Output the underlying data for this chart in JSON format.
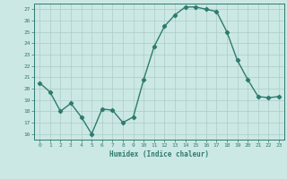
{
  "x": [
    0,
    1,
    2,
    3,
    4,
    5,
    6,
    7,
    8,
    9,
    10,
    11,
    12,
    13,
    14,
    15,
    16,
    17,
    18,
    19,
    20,
    21,
    22,
    23
  ],
  "y": [
    20.5,
    19.7,
    18.0,
    18.7,
    17.5,
    16.0,
    18.2,
    18.1,
    17.0,
    17.5,
    20.8,
    23.7,
    25.5,
    26.5,
    27.2,
    27.2,
    27.0,
    26.8,
    25.0,
    22.5,
    20.8,
    19.3,
    19.2,
    19.3
  ],
  "line_color": "#2e7b6e",
  "bg_color": "#cce8e4",
  "grid_color": "#aaccc8",
  "axis_color": "#2e7b6e",
  "xlabel": "Humidex (Indice chaleur)",
  "ylim": [
    15.5,
    27.5
  ],
  "yticks": [
    16,
    17,
    18,
    19,
    20,
    21,
    22,
    23,
    24,
    25,
    26,
    27
  ],
  "xticks": [
    0,
    1,
    2,
    3,
    4,
    5,
    6,
    7,
    8,
    9,
    10,
    11,
    12,
    13,
    14,
    15,
    16,
    17,
    18,
    19,
    20,
    21,
    22,
    23
  ],
  "xlabel_color": "#2e7b6e",
  "tick_color": "#2e7b6e",
  "marker_size": 2.2,
  "line_width": 1.0
}
